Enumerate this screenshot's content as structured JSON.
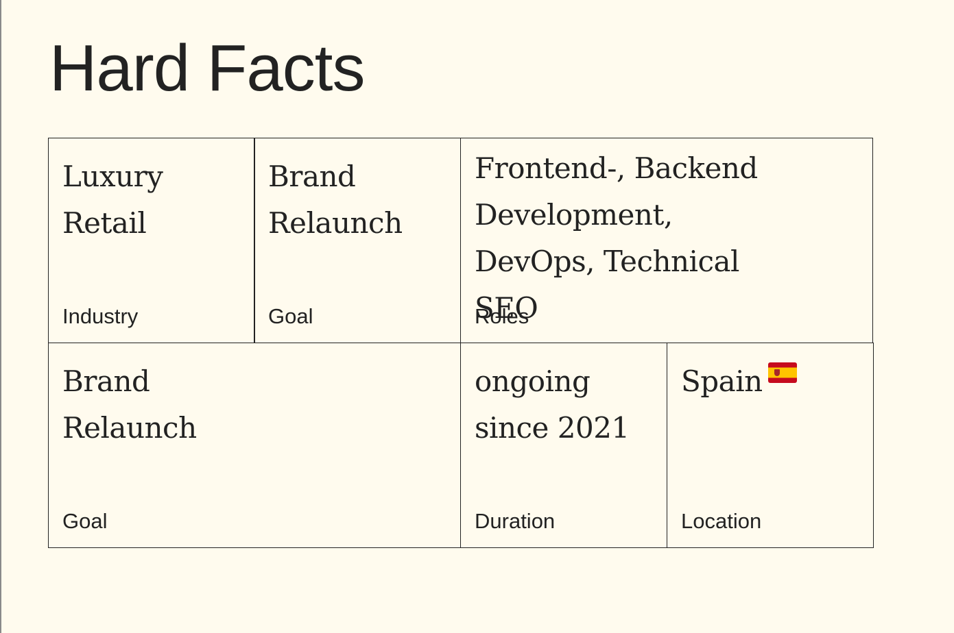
{
  "title": "Hard Facts",
  "facts": [
    {
      "value": "Luxury Retail",
      "label": "Industry"
    },
    {
      "value": "Brand Relaunch",
      "label": "Goal"
    },
    {
      "value": "Frontend-, Backend Development, DevOps, Technical SEO",
      "label": "Roles"
    },
    {
      "value": "Brand Relaunch",
      "label": "Goal"
    },
    {
      "value": "ongoing since 2021",
      "label": "Duration"
    },
    {
      "value": "Spain",
      "label": "Location",
      "icon": "spain-flag-icon"
    }
  ],
  "colors": {
    "background": "#fffbee",
    "text": "#222222",
    "border": "#222222"
  }
}
